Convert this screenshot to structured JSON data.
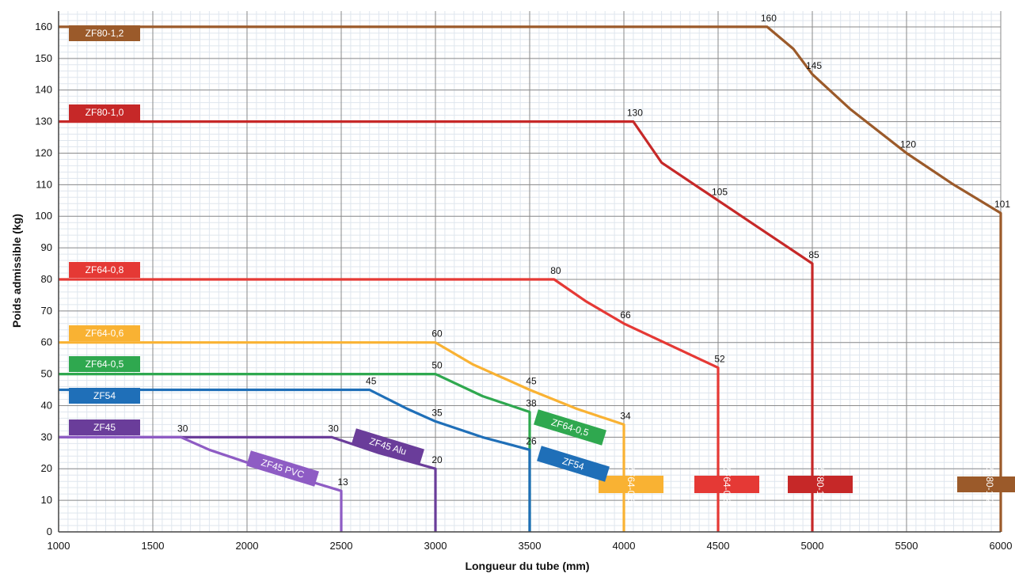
{
  "chart_data": {
    "type": "line",
    "title": "",
    "xlabel": "Longueur du tube (mm)",
    "ylabel": "Poids admissible (kg)",
    "xlim": [
      1000,
      6000
    ],
    "ylim": [
      0,
      165
    ],
    "x_ticks": [
      "1000",
      "1500",
      "2000",
      "2500",
      "3000",
      "3500",
      "4000",
      "4500",
      "5000",
      "5500",
      "6000"
    ],
    "y_ticks": [
      "0",
      "10",
      "20",
      "30",
      "40",
      "50",
      "60",
      "70",
      "80",
      "90",
      "100",
      "110",
      "120",
      "130",
      "140",
      "150",
      "160"
    ],
    "grid": true,
    "series": [
      {
        "name": "ZF80-1,2",
        "color": "#9b5a2a",
        "points": [
          [
            1000,
            160
          ],
          [
            4760,
            160
          ],
          [
            4900,
            153
          ],
          [
            5000,
            145
          ],
          [
            5200,
            134
          ],
          [
            5500,
            120
          ],
          [
            5750,
            110
          ],
          [
            6000,
            101
          ],
          [
            6000,
            0
          ]
        ],
        "labels": [
          {
            "x": 4760,
            "y": 160,
            "text": "160"
          },
          {
            "x": 5000,
            "y": 145,
            "text": "145"
          },
          {
            "x": 5500,
            "y": 120,
            "text": "120"
          },
          {
            "x": 6000,
            "y": 101,
            "text": "101"
          }
        ],
        "tags": [
          "ZF80-1,2",
          "ZF80-1,2"
        ]
      },
      {
        "name": "ZF80-1,0",
        "color": "#c62828",
        "points": [
          [
            1000,
            130
          ],
          [
            4050,
            130
          ],
          [
            4200,
            117
          ],
          [
            4500,
            105
          ],
          [
            4750,
            95
          ],
          [
            5000,
            85
          ],
          [
            5000,
            0
          ]
        ],
        "labels": [
          {
            "x": 4050,
            "y": 130,
            "text": "130"
          },
          {
            "x": 4500,
            "y": 105,
            "text": "105"
          },
          {
            "x": 5000,
            "y": 85,
            "text": "85"
          }
        ],
        "tags": [
          "ZF80-1,0",
          "ZF80-1,0"
        ]
      },
      {
        "name": "ZF64-0,8",
        "color": "#e53935",
        "points": [
          [
            1000,
            80
          ],
          [
            3630,
            80
          ],
          [
            3800,
            73
          ],
          [
            4000,
            66
          ],
          [
            4250,
            59
          ],
          [
            4500,
            52
          ],
          [
            4500,
            0
          ]
        ],
        "labels": [
          {
            "x": 3630,
            "y": 80,
            "text": "80"
          },
          {
            "x": 4000,
            "y": 66,
            "text": "66"
          },
          {
            "x": 4500,
            "y": 52,
            "text": "52"
          }
        ],
        "tags": [
          "ZF64-0,8",
          "ZF64-0,8"
        ]
      },
      {
        "name": "ZF64-0,6",
        "color": "#f9b233",
        "points": [
          [
            1000,
            60
          ],
          [
            3000,
            60
          ],
          [
            3200,
            53
          ],
          [
            3500,
            45
          ],
          [
            3750,
            39
          ],
          [
            4000,
            34
          ],
          [
            4000,
            0
          ]
        ],
        "labels": [
          {
            "x": 3000,
            "y": 60,
            "text": "60"
          },
          {
            "x": 3500,
            "y": 45,
            "text": "45"
          },
          {
            "x": 4000,
            "y": 34,
            "text": "34"
          }
        ],
        "tags": [
          "ZF64-0,6",
          "ZF64-0,6"
        ]
      },
      {
        "name": "ZF64-0,5",
        "color": "#2fa84f",
        "points": [
          [
            1000,
            50
          ],
          [
            3000,
            50
          ],
          [
            3250,
            43
          ],
          [
            3500,
            38
          ],
          [
            3500,
            0
          ]
        ],
        "labels": [
          {
            "x": 3000,
            "y": 50,
            "text": "50"
          },
          {
            "x": 3500,
            "y": 38,
            "text": "38"
          }
        ],
        "tags": [
          "ZF64-0,5",
          "ZF64-0,5"
        ]
      },
      {
        "name": "ZF54",
        "color": "#1f6fb8",
        "points": [
          [
            1000,
            45
          ],
          [
            2650,
            45
          ],
          [
            2850,
            39
          ],
          [
            3000,
            35
          ],
          [
            3250,
            30
          ],
          [
            3500,
            26
          ],
          [
            3500,
            0
          ]
        ],
        "labels": [
          {
            "x": 2650,
            "y": 45,
            "text": "45"
          },
          {
            "x": 3000,
            "y": 35,
            "text": "35"
          },
          {
            "x": 3500,
            "y": 26,
            "text": "26"
          }
        ],
        "tags": [
          "ZF54",
          "ZF54"
        ]
      },
      {
        "name": "ZF45 Alu",
        "color": "#6a3d9a",
        "points": [
          [
            1000,
            30
          ],
          [
            2450,
            30
          ],
          [
            2700,
            25
          ],
          [
            3000,
            20
          ],
          [
            3000,
            0
          ]
        ],
        "labels": [
          {
            "x": 2450,
            "y": 30,
            "text": "30"
          },
          {
            "x": 3000,
            "y": 20,
            "text": "20"
          }
        ],
        "tags": [
          "ZF45",
          "ZF45 Alu"
        ]
      },
      {
        "name": "ZF45 PVC",
        "color": "#8e5cc4",
        "points": [
          [
            1000,
            30
          ],
          [
            1650,
            30
          ],
          [
            1800,
            26
          ],
          [
            2000,
            22
          ],
          [
            2250,
            17.5
          ],
          [
            2500,
            13
          ],
          [
            2500,
            0
          ]
        ],
        "labels": [
          {
            "x": 1650,
            "y": 30,
            "text": "30"
          },
          {
            "x": 2500,
            "y": 13,
            "text": "13"
          }
        ],
        "tags": [
          "ZF45 PVC"
        ]
      }
    ]
  }
}
